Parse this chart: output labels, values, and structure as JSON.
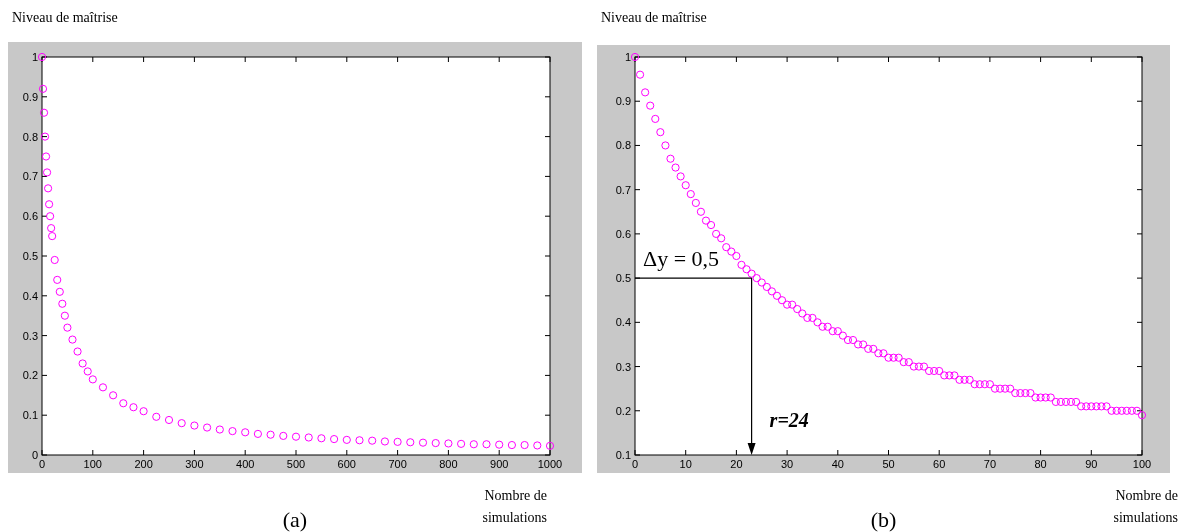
{
  "chart_data": [
    {
      "type": "scatter",
      "title": "(a)",
      "xlabel": "Nombre de simulations",
      "ylabel": "Niveau de maîtrise",
      "marker": "circle",
      "xlim": [
        0,
        1000
      ],
      "ylim": [
        0,
        1
      ],
      "xticks": [
        0,
        100,
        200,
        300,
        400,
        500,
        600,
        700,
        800,
        900,
        1000
      ],
      "yticks": [
        0,
        0.1,
        0.2,
        0.3,
        0.4,
        0.5,
        0.6,
        0.7,
        0.8,
        0.9,
        1
      ],
      "series": [
        {
          "color": "#ff00ff",
          "x": [
            0,
            2,
            4,
            6,
            8,
            10,
            12,
            14,
            16,
            18,
            20,
            25,
            30,
            35,
            40,
            45,
            50,
            60,
            70,
            80,
            90,
            100,
            120,
            140,
            160,
            180,
            200,
            225,
            250,
            275,
            300,
            325,
            350,
            375,
            400,
            425,
            450,
            475,
            500,
            525,
            550,
            575,
            600,
            625,
            650,
            675,
            700,
            725,
            750,
            775,
            800,
            825,
            850,
            875,
            900,
            925,
            950,
            975,
            1000
          ],
          "values": [
            1,
            0.92,
            0.86,
            0.8,
            0.75,
            0.71,
            0.67,
            0.63,
            0.6,
            0.57,
            0.55,
            0.49,
            0.44,
            0.41,
            0.38,
            0.35,
            0.32,
            0.29,
            0.26,
            0.23,
            0.21,
            0.19,
            0.17,
            0.15,
            0.13,
            0.12,
            0.11,
            0.096,
            0.088,
            0.08,
            0.074,
            0.069,
            0.064,
            0.06,
            0.057,
            0.053,
            0.051,
            0.048,
            0.046,
            0.044,
            0.042,
            0.04,
            0.038,
            0.037,
            0.036,
            0.034,
            0.033,
            0.032,
            0.031,
            0.03,
            0.029,
            0.028,
            0.027,
            0.027,
            0.026,
            0.025,
            0.025,
            0.024,
            0.023
          ]
        }
      ]
    },
    {
      "type": "scatter",
      "title": "(b)",
      "xlabel": "Nombre de simulations",
      "ylabel": "Niveau de maîtrise",
      "marker": "circle",
      "xlim": [
        0,
        100
      ],
      "ylim": [
        0.1,
        1
      ],
      "xticks": [
        0,
        10,
        20,
        30,
        40,
        50,
        60,
        70,
        80,
        90,
        100
      ],
      "yticks": [
        0.1,
        0.2,
        0.3,
        0.4,
        0.5,
        0.6,
        0.7,
        0.8,
        0.9,
        1
      ],
      "ref_lines": [
        {
          "axis": "y",
          "value": 0.5,
          "label": "Δy = 0,5"
        }
      ],
      "annotations": [
        {
          "text": "r=24",
          "x": 23,
          "y": 0.5
        }
      ],
      "series": [
        {
          "color": "#ff00ff",
          "x": [
            0,
            1,
            2,
            3,
            4,
            5,
            6,
            7,
            8,
            9,
            10,
            11,
            12,
            13,
            14,
            15,
            16,
            17,
            18,
            19,
            20,
            21,
            22,
            23,
            24,
            25,
            26,
            27,
            28,
            29,
            30,
            31,
            32,
            33,
            34,
            35,
            36,
            37,
            38,
            39,
            40,
            41,
            42,
            43,
            44,
            45,
            46,
            47,
            48,
            49,
            50,
            51,
            52,
            53,
            54,
            55,
            56,
            57,
            58,
            59,
            60,
            61,
            62,
            63,
            64,
            65,
            66,
            67,
            68,
            69,
            70,
            71,
            72,
            73,
            74,
            75,
            76,
            77,
            78,
            79,
            80,
            81,
            82,
            83,
            84,
            85,
            86,
            87,
            88,
            89,
            90,
            91,
            92,
            93,
            94,
            95,
            96,
            97,
            98,
            99,
            100
          ],
          "values": [
            1,
            0.96,
            0.92,
            0.89,
            0.86,
            0.83,
            0.8,
            0.77,
            0.75,
            0.73,
            0.71,
            0.69,
            0.67,
            0.65,
            0.63,
            0.62,
            0.6,
            0.59,
            0.57,
            0.56,
            0.55,
            0.53,
            0.52,
            0.51,
            0.5,
            0.49,
            0.48,
            0.47,
            0.46,
            0.45,
            0.44,
            0.44,
            0.43,
            0.42,
            0.41,
            0.41,
            0.4,
            0.39,
            0.39,
            0.38,
            0.38,
            0.37,
            0.36,
            0.36,
            0.35,
            0.35,
            0.34,
            0.34,
            0.33,
            0.33,
            0.32,
            0.32,
            0.32,
            0.31,
            0.31,
            0.3,
            0.3,
            0.3,
            0.29,
            0.29,
            0.29,
            0.28,
            0.28,
            0.28,
            0.27,
            0.27,
            0.27,
            0.26,
            0.26,
            0.26,
            0.26,
            0.25,
            0.25,
            0.25,
            0.25,
            0.24,
            0.24,
            0.24,
            0.24,
            0.23,
            0.23,
            0.23,
            0.23,
            0.22,
            0.22,
            0.22,
            0.22,
            0.22,
            0.21,
            0.21,
            0.21,
            0.21,
            0.21,
            0.21,
            0.2,
            0.2,
            0.2,
            0.2,
            0.2,
            0.2,
            0.19
          ]
        }
      ]
    }
  ]
}
